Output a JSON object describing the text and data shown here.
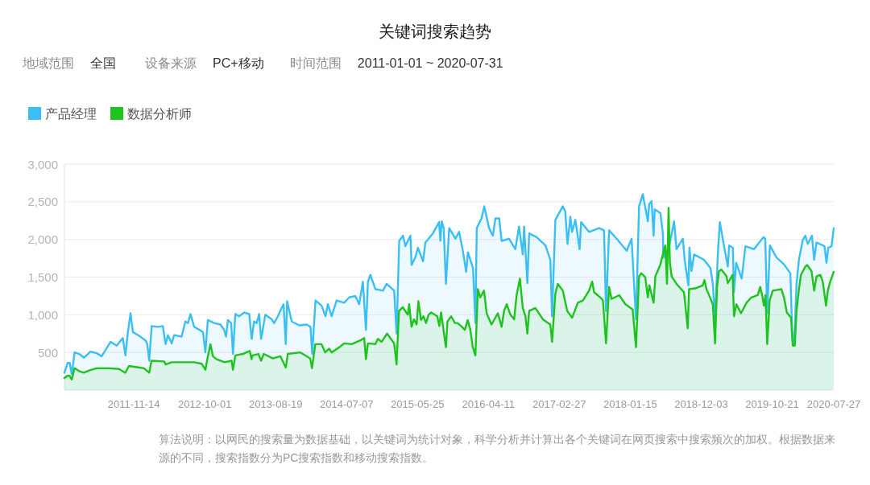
{
  "chart_data": {
    "type": "area",
    "title": "关键词搜索趋势",
    "annotations": [
      "地域范围",
      "全国",
      "设备来源",
      "PC+移动",
      "时间范围",
      "2011-01-01 ~ 2020-07-31",
      "算法说明：以网民的搜索量为数据基础，以关键词为统计对象，科学分析并计算出各个关键词在网页搜索中搜索频次的加权。根据数据来源的不同，搜索指数分为PC搜索指数和移动搜索指数。"
    ],
    "xlim": [
      "2011-01-03",
      "2020-07-27"
    ],
    "xticks": [
      "2011-11-14",
      "2012-10-01",
      "2013-08-19",
      "2014-07-07",
      "2015-05-25",
      "2016-04-11",
      "2017-02-27",
      "2018-01-15",
      "2018-12-03",
      "2019-10-21",
      "2020-07-27"
    ],
    "ylim": [
      0,
      3000
    ],
    "yticks": [
      500,
      {
        "value": 1000,
        "label": "1,000"
      },
      {
        "value": 1500,
        "label": "1,500"
      },
      {
        "value": 2000,
        "label": "2,000"
      },
      {
        "value": 2500,
        "label": "2,500"
      },
      {
        "value": 3000,
        "label": "3,000"
      }
    ],
    "grid": "y",
    "legend": "top left",
    "series": [
      {
        "name": "产品经理",
        "color": "#3bbff2",
        "x": [
          "2011-01-03",
          "2011-01-17",
          "2011-01-27",
          "2011-02-05",
          "2011-02-18",
          "2011-03-11",
          "2011-04-02",
          "2011-05-01",
          "2011-05-29",
          "2011-06-21",
          "2011-07-31",
          "2011-08-28",
          "2011-09-25",
          "2011-10-07",
          "2011-10-18",
          "2011-10-30",
          "2011-11-10",
          "2011-12-08",
          "2012-01-06",
          "2012-01-14",
          "2012-01-23",
          "2012-02-03",
          "2012-03-02",
          "2012-03-25",
          "2012-04-06",
          "2012-04-17",
          "2012-05-04",
          "2012-05-15",
          "2012-06-18",
          "2012-07-05",
          "2012-07-17",
          "2012-07-28",
          "2012-08-14",
          "2012-09-06",
          "2012-09-23",
          "2012-10-04",
          "2012-10-15",
          "2012-11-13",
          "2012-12-11",
          "2012-12-28",
          "2013-01-06",
          "2013-01-14",
          "2013-01-29",
          "2013-02-06",
          "2013-02-17",
          "2013-03-06",
          "2013-03-29",
          "2013-04-21",
          "2013-05-02",
          "2013-05-13",
          "2013-05-25",
          "2013-06-05",
          "2013-06-14",
          "2013-07-03",
          "2013-08-01",
          "2013-08-12",
          "2013-08-29",
          "2013-09-15",
          "2013-09-24",
          "2013-10-04",
          "2013-10-10",
          "2013-10-31",
          "2013-12-04",
          "2014-01-07",
          "2014-01-24",
          "2014-02-01",
          "2014-02-16",
          "2014-03-16",
          "2014-04-02",
          "2014-04-13",
          "2014-04-30",
          "2014-05-23",
          "2014-06-26",
          "2014-07-19",
          "2014-08-16",
          "2014-09-02",
          "2014-09-19",
          "2014-10-03",
          "2014-10-12",
          "2014-10-23",
          "2014-11-15",
          "2014-12-19",
          "2015-01-05",
          "2015-02-08",
          "2015-02-19",
          "2015-03-03",
          "2015-03-20",
          "2015-03-31",
          "2015-04-23",
          "2015-04-28",
          "2015-05-15",
          "2015-05-27",
          "2015-06-19",
          "2015-06-30",
          "2015-08-03",
          "2015-08-31",
          "2015-09-06",
          "2015-09-12",
          "2015-09-21",
          "2015-10-01",
          "2015-10-16",
          "2015-11-13",
          "2015-11-30",
          "2015-12-17",
          "2016-01-01",
          "2016-01-09",
          "2016-02-01",
          "2016-02-12",
          "2016-02-18",
          "2016-03-11",
          "2016-03-23",
          "2016-04-14",
          "2016-05-01",
          "2016-05-13",
          "2016-05-30",
          "2016-06-10",
          "2016-07-14",
          "2016-08-11",
          "2016-08-28",
          "2016-09-14",
          "2016-09-20",
          "2016-10-05",
          "2016-10-13",
          "2016-11-16",
          "2016-12-26",
          "2017-01-17",
          "2017-01-25",
          "2017-02-09",
          "2017-03-15",
          "2017-03-26",
          "2017-04-05",
          "2017-04-18",
          "2017-04-26",
          "2017-05-11",
          "2017-05-30",
          "2017-06-06",
          "2017-07-12",
          "2017-08-27",
          "2017-09-18",
          "2017-09-27",
          "2017-10-11",
          "2017-11-14",
          "2017-12-30",
          "2018-01-21",
          "2018-02-10",
          "2018-02-24",
          "2018-03-13",
          "2018-04-05",
          "2018-04-11",
          "2018-04-22",
          "2018-05-01",
          "2018-05-06",
          "2018-06-01",
          "2018-06-12",
          "2018-06-15",
          "2018-07-10",
          "2018-07-27",
          "2018-08-02",
          "2018-08-13",
          "2018-09-11",
          "2018-09-19",
          "2018-10-06",
          "2018-10-11",
          "2018-10-20",
          "2018-11-01",
          "2018-12-16",
          "2019-01-14",
          "2019-01-25",
          "2019-02-04",
          "2019-02-17",
          "2019-02-26",
          "2019-03-17",
          "2019-04-03",
          "2019-04-09",
          "2019-04-26",
          "2019-05-01",
          "2019-05-11",
          "2019-06-05",
          "2019-06-22",
          "2019-07-31",
          "2019-09-12",
          "2019-09-20",
          "2019-09-29",
          "2019-10-11",
          "2019-11-10",
          "2019-12-14",
          "2020-01-12",
          "2020-01-21",
          "2020-01-29",
          "2020-02-09",
          "2020-02-20",
          "2020-03-08",
          "2020-03-20",
          "2020-03-31",
          "2020-04-19",
          "2020-04-29",
          "2020-05-10",
          "2020-06-15",
          "2020-06-24",
          "2020-07-02",
          "2020-07-17",
          "2020-07-27"
        ],
        "values": [
          230,
          360,
          360,
          210,
          500,
          480,
          430,
          510,
          490,
          450,
          640,
          590,
          690,
          460,
          770,
          1020,
          770,
          720,
          660,
          610,
          390,
          850,
          840,
          850,
          610,
          730,
          620,
          730,
          710,
          910,
          890,
          1010,
          840,
          800,
          770,
          500,
          930,
          890,
          870,
          800,
          710,
          930,
          890,
          480,
          1010,
          980,
          1030,
          1010,
          680,
          910,
          890,
          1010,
          680,
          1000,
          940,
          890,
          980,
          1090,
          1140,
          610,
          1180,
          910,
          860,
          870,
          840,
          480,
          1190,
          1120,
          980,
          1140,
          980,
          1190,
          1160,
          1230,
          1250,
          1140,
          1440,
          800,
          1440,
          1530,
          1340,
          1320,
          1410,
          1320,
          750,
          1980,
          2050,
          1910,
          2050,
          1660,
          1760,
          1890,
          1710,
          1960,
          2080,
          2230,
          1980,
          2240,
          2150,
          1410,
          2150,
          2010,
          2100,
          1850,
          1570,
          1830,
          1620,
          890,
          2150,
          2280,
          2440,
          2150,
          2050,
          2280,
          2280,
          1980,
          2010,
          1870,
          2170,
          1800,
          2170,
          1420,
          2080,
          2030,
          1920,
          1730,
          980,
          2260,
          2440,
          2370,
          1940,
          2300,
          2100,
          2260,
          1870,
          2230,
          2100,
          2150,
          2120,
          1050,
          2120,
          2010,
          1850,
          2010,
          940,
          2440,
          2600,
          2240,
          2470,
          2510,
          2050,
          2400,
          2350,
          2080,
          1760,
          1900,
          2150,
          2240,
          1870,
          2010,
          1730,
          1390,
          1890,
          1580,
          1800,
          1730,
          1620,
          1410,
          940,
          1830,
          2230,
          1910,
          1640,
          1920,
          1890,
          1300,
          1690,
          1480,
          1910,
          1870,
          2030,
          2010,
          1020,
          1920,
          1760,
          1670,
          1550,
          690,
          620,
          1410,
          1730,
          1990,
          2050,
          1940,
          2050,
          1730,
          1960,
          1910,
          1690,
          1890,
          1910,
          2150
        ]
      },
      {
        "name": "数据分析师",
        "color": "#1ec31e",
        "x": [
          "2011-01-03",
          "2011-01-16",
          "2011-01-26",
          "2011-02-05",
          "2011-02-18",
          "2011-03-12",
          "2011-04-01",
          "2011-04-25",
          "2011-05-29",
          "2011-07-23",
          "2011-09-08",
          "2011-10-06",
          "2011-10-23",
          "2011-11-16",
          "2011-12-30",
          "2012-01-23",
          "2012-02-02",
          "2012-03-31",
          "2012-04-07",
          "2012-05-04",
          "2012-08-14",
          "2012-09-17",
          "2012-10-04",
          "2012-10-14",
          "2012-10-27",
          "2012-11-07",
          "2012-11-24",
          "2012-12-30",
          "2013-01-31",
          "2013-02-06",
          "2013-02-17",
          "2013-03-23",
          "2013-04-23",
          "2013-05-02",
          "2013-05-06",
          "2013-06-02",
          "2013-06-14",
          "2013-06-26",
          "2013-08-06",
          "2013-09-09",
          "2013-10-04",
          "2013-10-13",
          "2013-12-09",
          "2014-01-06",
          "2014-01-23",
          "2014-01-31",
          "2014-02-15",
          "2014-03-15",
          "2014-04-01",
          "2014-04-19",
          "2014-04-30",
          "2014-06-09",
          "2014-06-26",
          "2014-07-30",
          "2014-09-08",
          "2014-09-25",
          "2014-10-03",
          "2014-10-12",
          "2014-11-15",
          "2014-11-26",
          "2014-12-13",
          "2015-01-07",
          "2015-02-08",
          "2015-02-19",
          "2015-03-02",
          "2015-03-19",
          "2015-04-11",
          "2015-04-17",
          "2015-04-28",
          "2015-05-09",
          "2015-05-21",
          "2015-05-29",
          "2015-06-10",
          "2015-06-21",
          "2015-07-03",
          "2015-07-14",
          "2015-07-26",
          "2015-08-23",
          "2015-09-01",
          "2015-09-09",
          "2015-10-01",
          "2015-10-08",
          "2015-10-25",
          "2015-11-11",
          "2015-11-22",
          "2015-12-09",
          "2015-12-26",
          "2016-01-08",
          "2016-01-20",
          "2016-01-31",
          "2016-02-12",
          "2016-02-23",
          "2016-03-05",
          "2016-03-22",
          "2016-04-03",
          "2016-04-25",
          "2016-05-24",
          "2016-06-10",
          "2016-06-21",
          "2016-07-03",
          "2016-07-20",
          "2016-08-06",
          "2016-08-17",
          "2016-09-01",
          "2016-09-14",
          "2016-09-26",
          "2016-10-05",
          "2016-10-13",
          "2016-11-10",
          "2016-12-14",
          "2017-01-17",
          "2017-01-25",
          "2017-02-09",
          "2017-02-20",
          "2017-03-15",
          "2017-04-04",
          "2017-04-26",
          "2017-05-22",
          "2017-06-14",
          "2017-07-12",
          "2017-07-26",
          "2017-08-04",
          "2017-09-01",
          "2017-09-13",
          "2017-09-27",
          "2017-10-11",
          "2017-10-22",
          "2017-11-26",
          "2017-12-24",
          "2018-01-26",
          "2018-02-10",
          "2018-02-24",
          "2018-03-07",
          "2018-03-24",
          "2018-04-05",
          "2018-04-12",
          "2018-05-01",
          "2018-05-09",
          "2018-05-31",
          "2018-06-12",
          "2018-06-23",
          "2018-07-01",
          "2018-07-08",
          "2018-07-14",
          "2018-07-22",
          "2018-08-13",
          "2018-09-16",
          "2018-10-03",
          "2018-10-09",
          "2018-11-06",
          "2018-12-10",
          "2018-12-18",
          "2018-12-27",
          "2019-01-05",
          "2019-01-25",
          "2019-02-04",
          "2019-02-13",
          "2019-02-22",
          "2019-03-05",
          "2019-03-28",
          "2019-04-03",
          "2019-04-25",
          "2019-05-01",
          "2019-05-12",
          "2019-06-02",
          "2019-06-27",
          "2019-07-19",
          "2019-08-17",
          "2019-08-28",
          "2019-09-06",
          "2019-09-14",
          "2019-09-21",
          "2019-09-29",
          "2019-10-10",
          "2019-10-24",
          "2019-12-02",
          "2019-12-14",
          "2019-12-27",
          "2020-01-15",
          "2020-01-23",
          "2020-02-01",
          "2020-02-09",
          "2020-02-20",
          "2020-02-29",
          "2020-03-20",
          "2020-03-28",
          "2020-04-17",
          "2020-04-29",
          "2020-05-10",
          "2020-05-27",
          "2020-06-07",
          "2020-06-22",
          "2020-06-30",
          "2020-07-11",
          "2020-07-27"
        ],
        "values": [
          160,
          190,
          190,
          140,
          290,
          250,
          230,
          260,
          290,
          290,
          280,
          230,
          320,
          310,
          290,
          230,
          390,
          380,
          340,
          370,
          370,
          350,
          270,
          430,
          610,
          450,
          410,
          370,
          390,
          270,
          460,
          480,
          520,
          410,
          460,
          480,
          390,
          480,
          420,
          450,
          300,
          480,
          500,
          450,
          420,
          290,
          610,
          610,
          500,
          550,
          500,
          580,
          620,
          610,
          660,
          690,
          410,
          620,
          610,
          680,
          640,
          750,
          620,
          340,
          1050,
          1100,
          1000,
          1140,
          840,
          940,
          870,
          1180,
          930,
          980,
          890,
          1000,
          1030,
          980,
          850,
          1030,
          570,
          910,
          980,
          890,
          890,
          850,
          800,
          930,
          800,
          570,
          460,
          1340,
          1230,
          1320,
          1020,
          870,
          1020,
          840,
          1050,
          1140,
          1000,
          940,
          1260,
          1480,
          1090,
          980,
          750,
          1050,
          1090,
          940,
          870,
          640,
          1280,
          1410,
          1320,
          1050,
          960,
          1160,
          1190,
          1320,
          1440,
          1300,
          1230,
          1190,
          620,
          1370,
          1210,
          1260,
          1140,
          1070,
          570,
          1510,
          1550,
          1500,
          1230,
          1390,
          1160,
          1510,
          1660,
          1800,
          1920,
          1410,
          2420,
          1690,
          1510,
          1410,
          1300,
          820,
          1340,
          1350,
          1390,
          1460,
          1340,
          1280,
          1140,
          620,
          1370,
          1580,
          1600,
          1510,
          1420,
          1530,
          980,
          1140,
          1020,
          1160,
          1230,
          1260,
          1370,
          1260,
          1120,
          1260,
          610,
          1190,
          1320,
          1340,
          1230,
          1030,
          960,
          590,
          590,
          1050,
          1340,
          1530,
          1640,
          1660,
          1580,
          1320,
          1510,
          1530,
          1440,
          1120,
          1320,
          1440,
          1570
        ]
      }
    ]
  }
}
